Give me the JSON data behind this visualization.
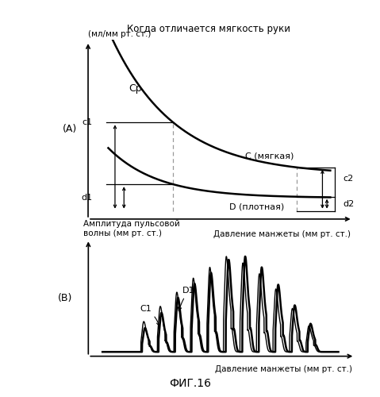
{
  "title": "Когда отличается мягкость руки",
  "fig_label": "ФИГ.16",
  "panel_A_label": "(A)",
  "panel_B_label": "(В)",
  "ylabel_A": "(мл/мм рт. ст.)",
  "ylabel_B": "Амплитуда пульсовой\nволны (мм рт. ст.)",
  "xlabel": "Давление манжеты (мм рт. ст.)",
  "label_Cp": "Cp",
  "label_C": "C (мягкая)",
  "label_D": "D (плотная)",
  "label_c1": "c1",
  "label_d1": "d1",
  "label_c2": "c2",
  "label_d2": "d2",
  "label_C1": "C1",
  "label_D1": "D1",
  "bg_color": "#ffffff",
  "line_color": "#000000",
  "dashed_color": "#999999"
}
